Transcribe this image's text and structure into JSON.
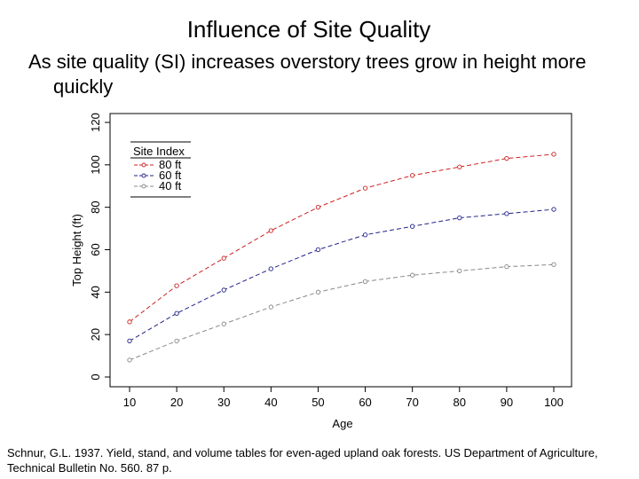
{
  "slide": {
    "title": "Influence of Site Quality",
    "bullet": "As site quality (SI) increases overstory trees grow in height more quickly",
    "citation": "Schnur, G.L. 1937. Yield, stand, and volume tables for even-aged upland oak forests. US Department of Agriculture, Technical Bulletin No. 560. 87 p."
  },
  "chart_data": {
    "type": "line",
    "title": "",
    "xlabel": "Age",
    "ylabel": "Top Height (ft)",
    "x": [
      10,
      20,
      30,
      40,
      50,
      60,
      70,
      80,
      90,
      100
    ],
    "xlim": [
      10,
      100
    ],
    "ylim": [
      0,
      120
    ],
    "xticks": [
      10,
      20,
      30,
      40,
      50,
      60,
      70,
      80,
      90,
      100
    ],
    "yticks": [
      0,
      20,
      40,
      60,
      80,
      100,
      120
    ],
    "grid": false,
    "legend": {
      "title": "Site Index",
      "position": "top-left"
    },
    "series": [
      {
        "name": "80 ft",
        "color": "#cc2222",
        "values": [
          26,
          43,
          56,
          69,
          80,
          89,
          95,
          99,
          103,
          105
        ]
      },
      {
        "name": "60 ft",
        "color": "#22228a",
        "values": [
          17,
          30,
          41,
          51,
          60,
          67,
          71,
          75,
          77,
          79
        ]
      },
      {
        "name": "40 ft",
        "color": "#888888",
        "values": [
          8,
          17,
          25,
          33,
          40,
          45,
          48,
          50,
          52,
          53
        ]
      }
    ]
  }
}
